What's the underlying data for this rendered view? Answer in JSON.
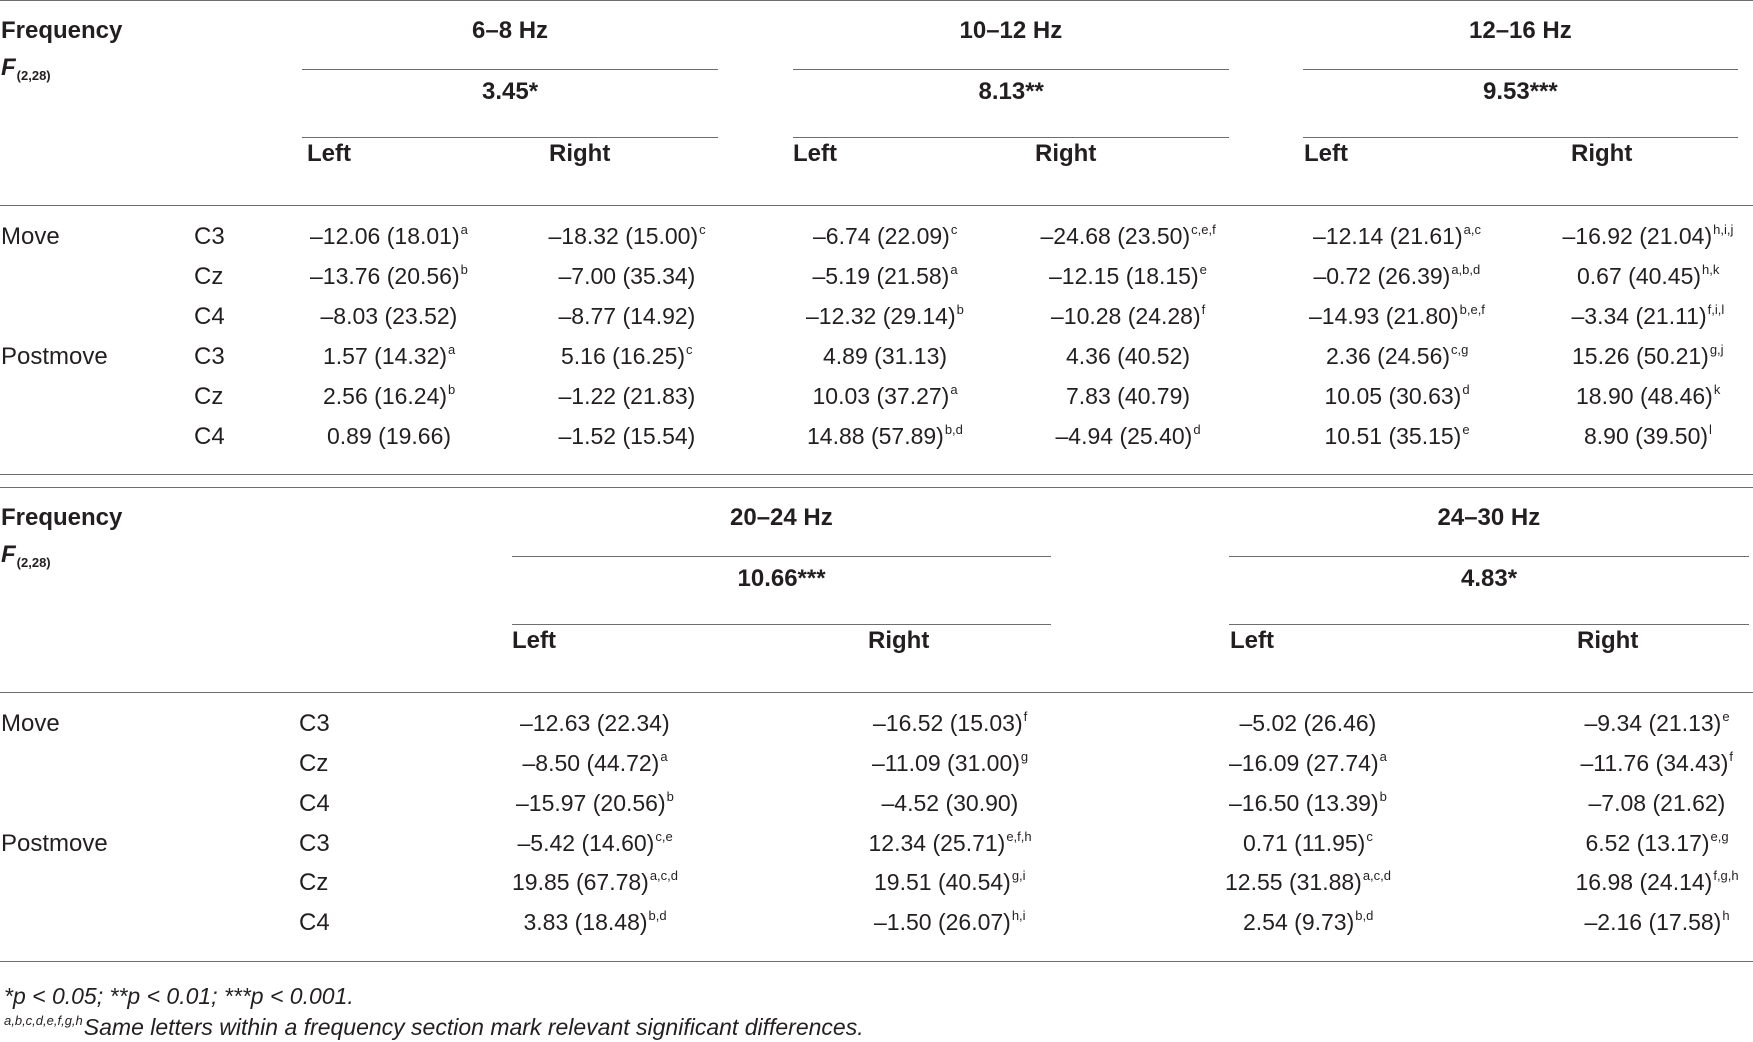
{
  "frequency_label": "Frequency",
  "f_label": "F",
  "f_sub": "(2,28)",
  "table1": {
    "bands": [
      {
        "range": "6–8 Hz",
        "f_value": "3.45*"
      },
      {
        "range": "10–12 Hz",
        "f_value": "8.13**"
      },
      {
        "range": "12–16 Hz",
        "f_value": "9.53***"
      }
    ],
    "left_label": "Left",
    "right_label": "Right",
    "rows": [
      {
        "phase": "Move",
        "site": "C3",
        "cells": [
          [
            "–12.06 (18.01)",
            "a"
          ],
          [
            "–18.32 (15.00)",
            "c"
          ],
          [
            "–6.74 (22.09)",
            "c"
          ],
          [
            "–24.68 (23.50)",
            "c,e,f"
          ],
          [
            "–12.14 (21.61)",
            "a,c"
          ],
          [
            "–16.92 (21.04)",
            "h,i,j"
          ]
        ]
      },
      {
        "phase": "",
        "site": "Cz",
        "cells": [
          [
            "–13.76 (20.56)",
            "b"
          ],
          [
            "–7.00 (35.34)",
            ""
          ],
          [
            "–5.19 (21.58)",
            "a"
          ],
          [
            "–12.15 (18.15)",
            "e"
          ],
          [
            "–0.72 (26.39)",
            "a,b,d"
          ],
          [
            "0.67 (40.45)",
            "h,k"
          ]
        ]
      },
      {
        "phase": "",
        "site": "C4",
        "cells": [
          [
            "–8.03 (23.52)",
            ""
          ],
          [
            "–8.77 (14.92)",
            ""
          ],
          [
            "–12.32 (29.14)",
            "b"
          ],
          [
            "–10.28 (24.28)",
            "f"
          ],
          [
            "–14.93 (21.80)",
            "b,e,f"
          ],
          [
            "–3.34 (21.11)",
            "f,i,l"
          ]
        ]
      },
      {
        "phase": "Postmove",
        "site": "C3",
        "cells": [
          [
            "1.57 (14.32)",
            "a"
          ],
          [
            "5.16 (16.25)",
            "c"
          ],
          [
            "4.89 (31.13)",
            ""
          ],
          [
            "4.36 (40.52)",
            ""
          ],
          [
            "2.36 (24.56)",
            "c,g"
          ],
          [
            "15.26 (50.21)",
            "g,j"
          ]
        ]
      },
      {
        "phase": "",
        "site": "Cz",
        "cells": [
          [
            "2.56 (16.24)",
            "b"
          ],
          [
            "–1.22 (21.83)",
            ""
          ],
          [
            "10.03 (37.27)",
            "a"
          ],
          [
            "7.83 (40.79)",
            ""
          ],
          [
            "10.05 (30.63)",
            "d"
          ],
          [
            "18.90 (48.46)",
            "k"
          ]
        ]
      },
      {
        "phase": "",
        "site": "C4",
        "cells": [
          [
            "0.89 (19.66)",
            ""
          ],
          [
            "–1.52 (15.54)",
            ""
          ],
          [
            "14.88 (57.89)",
            "b,d"
          ],
          [
            "–4.94 (25.40)",
            "d"
          ],
          [
            "10.51 (35.15)",
            "e"
          ],
          [
            "8.90 (39.50)",
            "l"
          ]
        ]
      }
    ]
  },
  "table2": {
    "bands": [
      {
        "range": "20–24 Hz",
        "f_value": "10.66***"
      },
      {
        "range": "24–30 Hz",
        "f_value": "4.83*"
      }
    ],
    "left_label": "Left",
    "right_label": "Right",
    "rows": [
      {
        "phase": "Move",
        "site": "C3",
        "cells": [
          [
            "–12.63 (22.34)",
            ""
          ],
          [
            "–16.52 (15.03)",
            "f"
          ],
          [
            "–5.02 (26.46)",
            ""
          ],
          [
            "–9.34 (21.13)",
            "e"
          ]
        ]
      },
      {
        "phase": "",
        "site": "Cz",
        "cells": [
          [
            "–8.50 (44.72)",
            "a"
          ],
          [
            "–11.09 (31.00)",
            "g"
          ],
          [
            "–16.09 (27.74)",
            "a"
          ],
          [
            "–11.76 (34.43)",
            "f"
          ]
        ]
      },
      {
        "phase": "",
        "site": "C4",
        "cells": [
          [
            "–15.97 (20.56)",
            "b"
          ],
          [
            "–4.52 (30.90)",
            ""
          ],
          [
            "–16.50 (13.39)",
            "b"
          ],
          [
            "–7.08 (21.62)",
            ""
          ]
        ]
      },
      {
        "phase": "Postmove",
        "site": "C3",
        "cells": [
          [
            "–5.42 (14.60)",
            "c,e"
          ],
          [
            "12.34 (25.71)",
            "e,f,h"
          ],
          [
            "0.71 (11.95)",
            "c"
          ],
          [
            "6.52 (13.17)",
            "e,g"
          ]
        ]
      },
      {
        "phase": "",
        "site": "Cz",
        "cells": [
          [
            "19.85 (67.78)",
            "a,c,d"
          ],
          [
            "19.51 (40.54)",
            "g,i"
          ],
          [
            "12.55 (31.88)",
            "a,c,d"
          ],
          [
            "16.98 (24.14)",
            "f,g,h"
          ]
        ]
      },
      {
        "phase": "",
        "site": "C4",
        "cells": [
          [
            "3.83 (18.48)",
            "b,d"
          ],
          [
            "–1.50 (26.07)",
            "h,i"
          ],
          [
            "2.54 (9.73)",
            "b,d"
          ],
          [
            "–2.16 (17.58)",
            "h"
          ]
        ]
      }
    ]
  },
  "footnotes": {
    "significance": "*p < 0.05; **p < 0.01; ***p < 0.001.",
    "letters_sup": "a,b,c,d,e,f,g,h",
    "letters_text": "Same letters within a frequency section mark relevant significant differences."
  }
}
